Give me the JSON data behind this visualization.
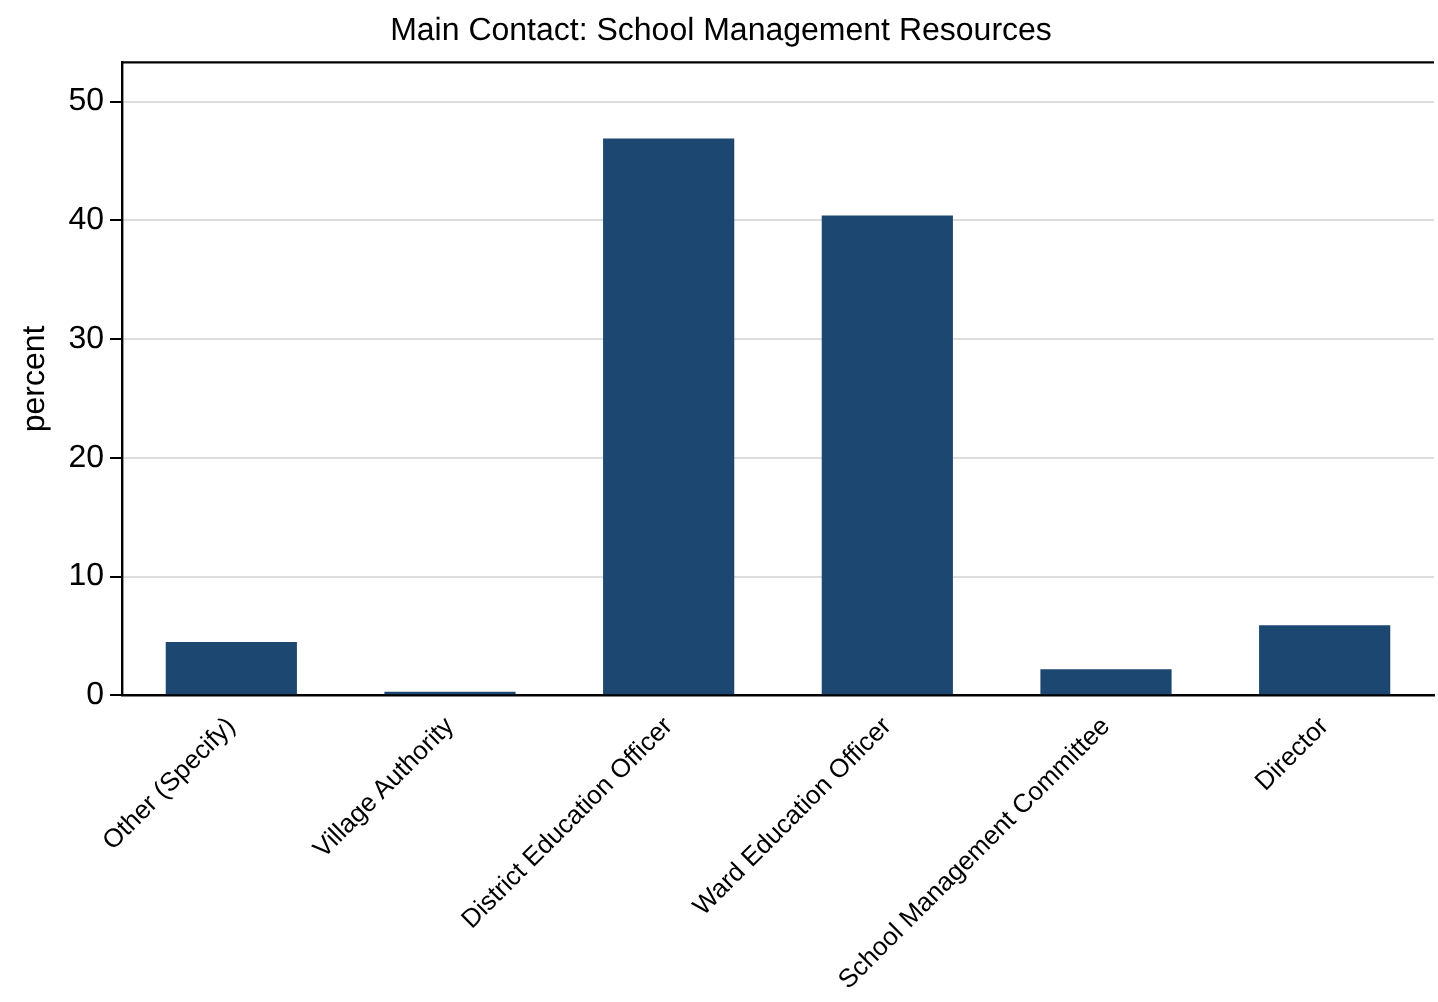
{
  "chart_data": {
    "type": "bar",
    "title": "Main Contact: School Management Resources",
    "ylabel": "percent",
    "categories": [
      "Other (Specify)",
      "Village Authority",
      "District Education Officer",
      "Ward Education Officer",
      "School Management Committee",
      "Director"
    ],
    "values": [
      4.5,
      0.3,
      46.9,
      40.4,
      2.2,
      5.9
    ],
    "color": "#1c4770",
    "ylim": [
      0,
      53.3
    ],
    "yticks": [
      0,
      10,
      20,
      30,
      40,
      50
    ],
    "grid": "y"
  }
}
